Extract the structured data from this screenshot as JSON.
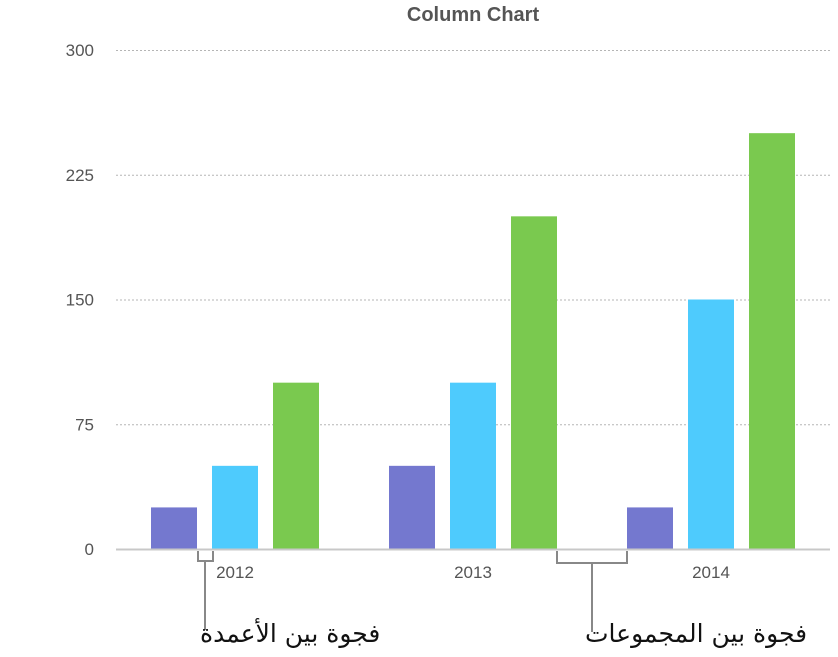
{
  "chart_data": {
    "type": "bar",
    "title": "Column Chart",
    "categories": [
      "2012",
      "2013",
      "2014"
    ],
    "series": [
      {
        "values": [
          25,
          50,
          25
        ],
        "color": "#7478cf"
      },
      {
        "values": [
          50,
          100,
          150
        ],
        "color": "#4ecbfd"
      },
      {
        "values": [
          100,
          200,
          250
        ],
        "color": "#7ac94f"
      }
    ],
    "ylim": [
      0,
      300
    ],
    "yticks": [
      "0",
      "75",
      "150",
      "225",
      "300"
    ],
    "grid": true,
    "grid_style": "dotted",
    "annotations": {
      "bar_gap": "فجوة بين الأعمدة",
      "group_gap": "فجوة بين المجموعات"
    }
  }
}
